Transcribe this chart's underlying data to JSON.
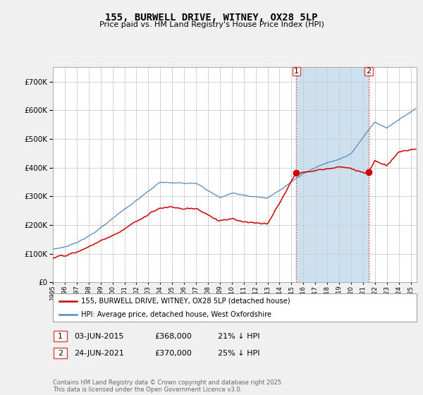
{
  "title": "155, BURWELL DRIVE, WITNEY, OX28 5LP",
  "subtitle": "Price paid vs. HM Land Registry's House Price Index (HPI)",
  "ytick_values": [
    0,
    100000,
    200000,
    300000,
    400000,
    500000,
    600000,
    700000
  ],
  "ylim": [
    0,
    750000
  ],
  "legend_line1": "155, BURWELL DRIVE, WITNEY, OX28 5LP (detached house)",
  "legend_line2": "HPI: Average price, detached house, West Oxfordshire",
  "transaction1_label": "1",
  "transaction1_date": "03-JUN-2015",
  "transaction1_price": "£368,000",
  "transaction1_hpi": "21% ↓ HPI",
  "transaction1_year": 2015.42,
  "transaction1_value": 368000,
  "transaction2_label": "2",
  "transaction2_date": "24-JUN-2021",
  "transaction2_price": "£370,000",
  "transaction2_hpi": "25% ↓ HPI",
  "transaction2_year": 2021.48,
  "transaction2_value": 370000,
  "footer": "Contains HM Land Registry data © Crown copyright and database right 2025.\nThis data is licensed under the Open Government Licence v3.0.",
  "line_color_red": "#cc0000",
  "line_color_blue": "#5588bb",
  "fill_color_blue": "#ddeeff",
  "background_color": "#f0f0f0",
  "plot_bg_color": "#ffffff",
  "grid_color": "#cccccc",
  "vline_color": "#dd4444",
  "shade_color": "#cce0f0",
  "xmin": 1995,
  "xmax": 2025.5
}
